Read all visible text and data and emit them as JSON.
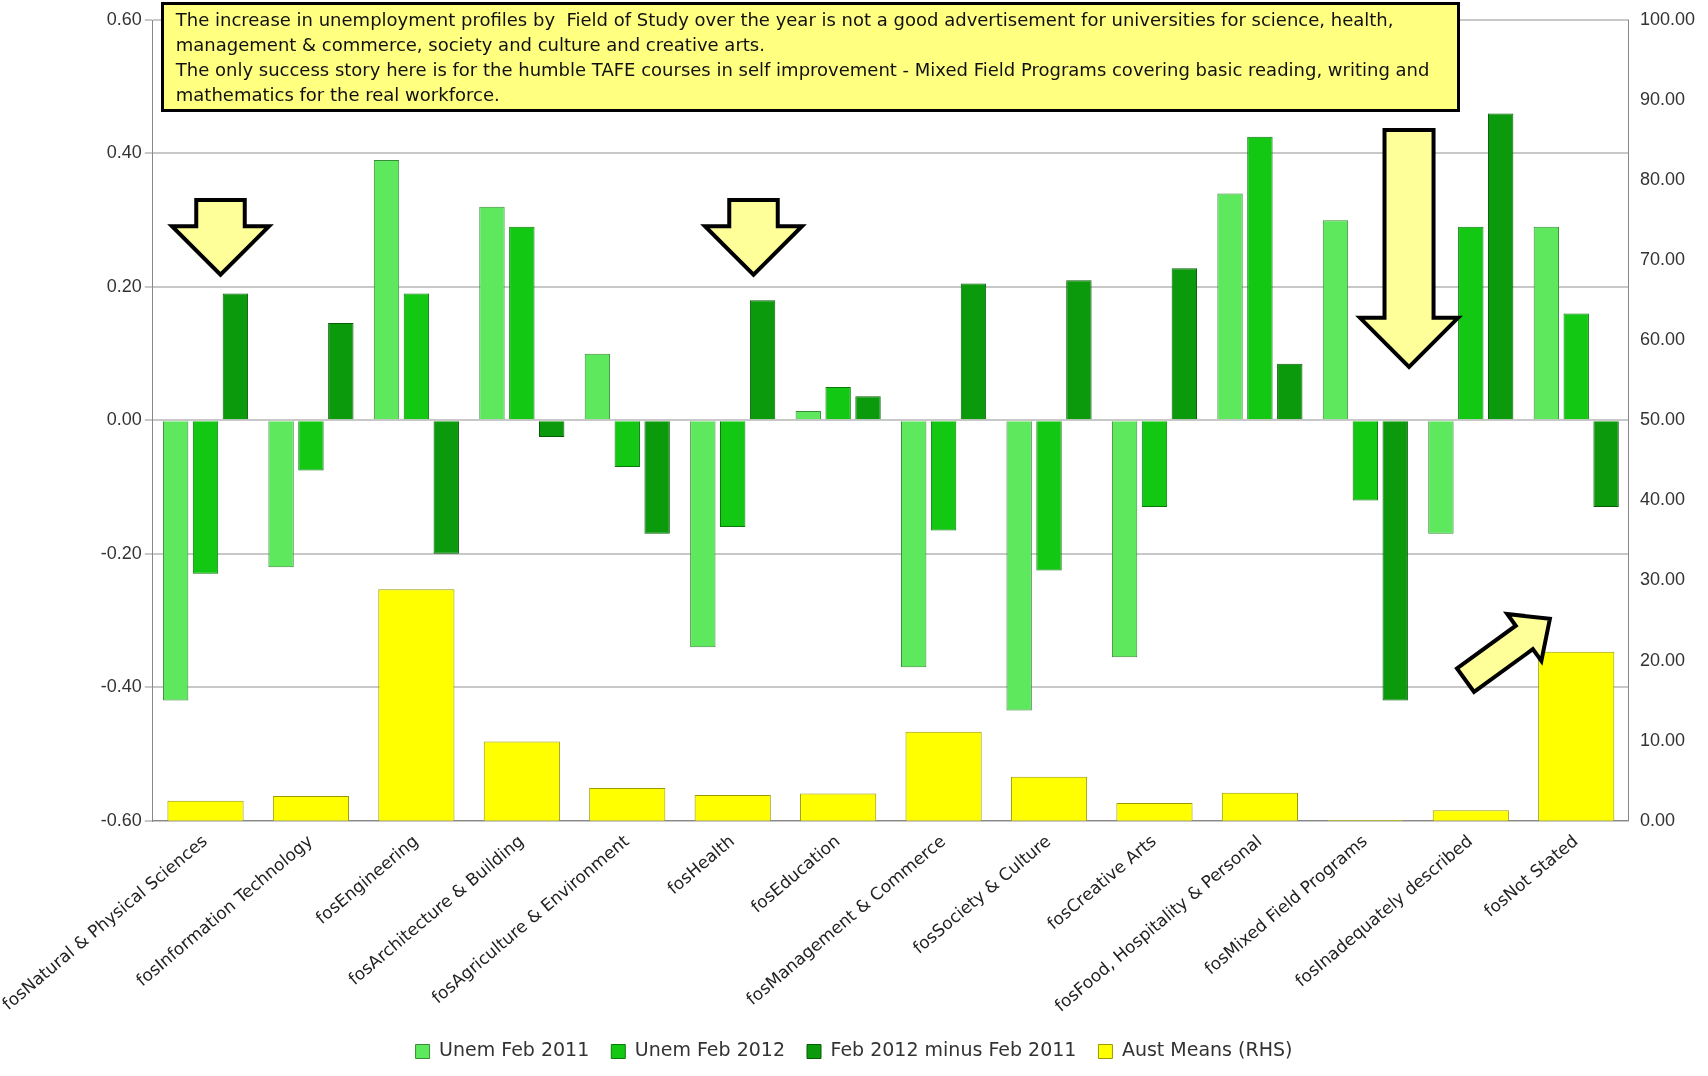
{
  "chart_data": {
    "type": "bar",
    "annotations": [
      "The increase in unemployment profiles by  Field of Study over the year is not a good advertisement for universities for science, health, management & commerce, society and culture and creative arts.\nThe only success story here is for the humble TAFE courses in self improvement - Mixed Field Programs covering basic reading, writing and mathematics for the real workforce."
    ],
    "categories": [
      "fosNatural & Physical Sciences",
      "fosInformation Technology",
      "fosEngineering",
      "fosArchitecture & Building",
      "fosAgriculture & Environment",
      "fosHealth",
      "fosEducation",
      "fosManagement & Commerce",
      "fosSociety & Culture",
      "fosCreative Arts",
      "fosFood, Hospitality & Personal",
      "fosMixed Field Programs",
      "fosInadequately described",
      "fosNot Stated"
    ],
    "series": [
      {
        "name": "Unem Feb 2011",
        "color": "#5ee85e",
        "values": [
          -0.42,
          -0.22,
          0.39,
          0.32,
          0.1,
          -0.34,
          0.014,
          -0.37,
          -0.435,
          -0.355,
          0.34,
          0.3,
          -0.17,
          0.29
        ]
      },
      {
        "name": "Unem Feb 2012",
        "color": "#12c812",
        "values": [
          -0.23,
          -0.075,
          0.19,
          0.29,
          -0.07,
          -0.16,
          0.05,
          -0.165,
          -0.225,
          -0.13,
          0.425,
          -0.12,
          0.29,
          0.16
        ]
      },
      {
        "name": "Feb 2012 minus Feb 2011",
        "color": "#0b9a0b",
        "values": [
          0.19,
          0.146,
          -0.2,
          -0.025,
          -0.17,
          0.18,
          0.036,
          0.205,
          0.21,
          0.228,
          0.085,
          -0.42,
          0.46,
          -0.13
        ]
      },
      {
        "name": "Aust Means (RHS)",
        "color": "#ffff00",
        "axis": "y2",
        "values": [
          2.5,
          3.1,
          28.9,
          9.9,
          4.1,
          3.2,
          3.4,
          11.1,
          5.5,
          2.2,
          3.5,
          0.1,
          1.3,
          21.1
        ]
      }
    ],
    "ylim": [
      -0.6,
      0.6
    ],
    "yticks": [
      {
        "value": -0.6,
        "label": "-0.60"
      },
      {
        "value": -0.4,
        "label": "-0.40"
      },
      {
        "value": -0.2,
        "label": "-0.20"
      },
      {
        "value": 0,
        "label": "0.00"
      },
      {
        "value": 0.2,
        "label": "0.20"
      },
      {
        "value": 0.4,
        "label": "0.40"
      },
      {
        "value": 0.6,
        "label": "0.60"
      }
    ],
    "y2lim": [
      0,
      100
    ],
    "y2ticks": [
      {
        "value": 0,
        "label": "0.00"
      },
      {
        "value": 10,
        "label": "10.00"
      },
      {
        "value": 20,
        "label": "20.00"
      },
      {
        "value": 30,
        "label": "30.00"
      },
      {
        "value": 40,
        "label": "40.00"
      },
      {
        "value": 50,
        "label": "50.00"
      },
      {
        "value": 60,
        "label": "60.00"
      },
      {
        "value": 70,
        "label": "70.00"
      },
      {
        "value": 80,
        "label": "80.00"
      },
      {
        "value": 90,
        "label": "90.00"
      },
      {
        "value": 100,
        "label": "100.00"
      }
    ],
    "grid": "y",
    "legend": "bottom"
  }
}
